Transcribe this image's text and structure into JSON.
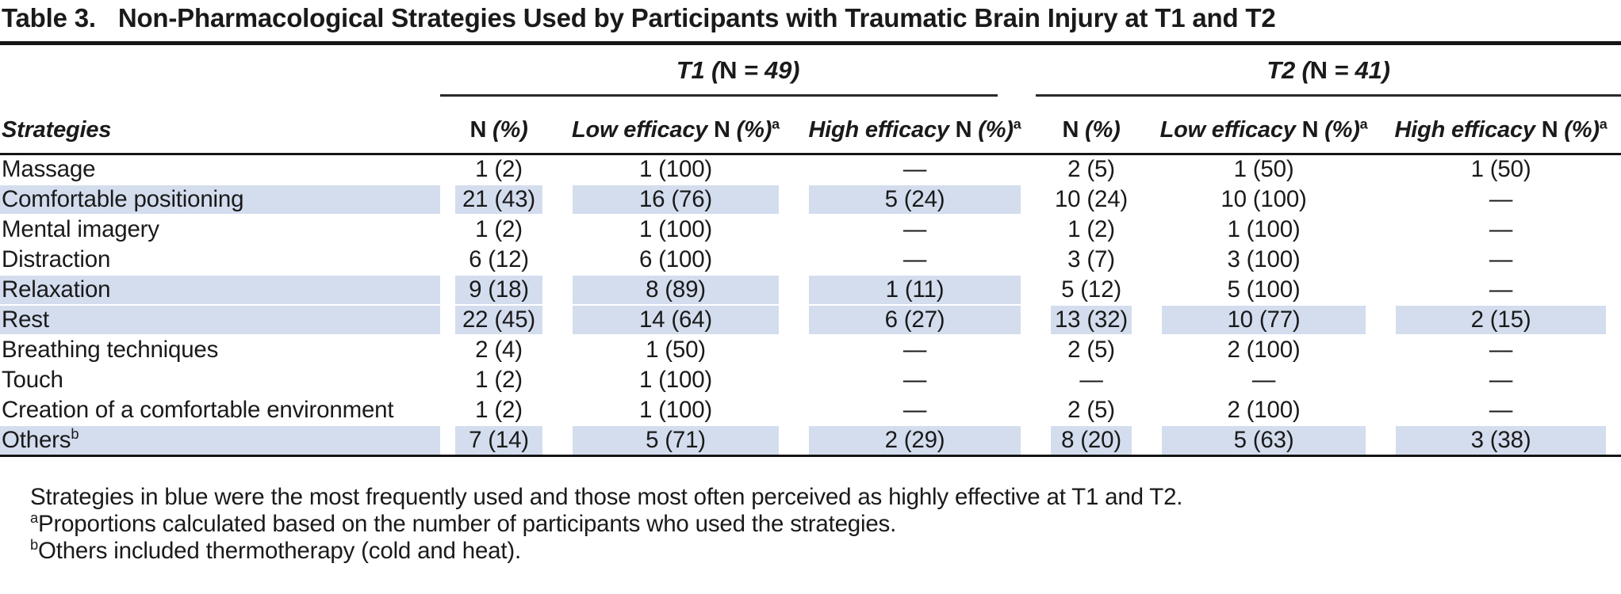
{
  "title": {
    "label": "Table 3.",
    "text": "Non-Pharmacological Strategies Used by Participants with Traumatic Brain Injury at T1 and T2"
  },
  "colors": {
    "highlight_blue": "#d3ddee",
    "rule_black": "#151515",
    "text": "#1a1a1a"
  },
  "header": {
    "strategies_label": "Strategies",
    "groups": [
      {
        "pre": "T1 (",
        "n": "N",
        "suf": " = 49)"
      },
      {
        "pre": "T2 (",
        "n": "N",
        "suf": " = 41)"
      }
    ],
    "subcols": [
      {
        "pre": "",
        "n": "N",
        "pct": " (%)",
        "sup": ""
      },
      {
        "pre": "Low efficacy ",
        "n": "N",
        "pct": " (%)",
        "sup": "a"
      },
      {
        "pre": "High efficacy ",
        "n": "N",
        "pct": " (%)",
        "sup": "a"
      },
      {
        "pre": "",
        "n": "N",
        "pct": " (%)",
        "sup": ""
      },
      {
        "pre": "Low efficacy ",
        "n": "N",
        "pct": " (%)",
        "sup": "a"
      },
      {
        "pre": "High efficacy ",
        "n": "N",
        "pct": " (%)",
        "sup": "a"
      }
    ]
  },
  "rows": [
    {
      "name": "Massage",
      "sup": "",
      "values": [
        "1 (2)",
        "1 (100)",
        "—",
        "2 (5)",
        "1 (50)",
        "1 (50)"
      ],
      "hl": [
        false,
        false,
        false,
        false,
        false,
        false,
        false
      ]
    },
    {
      "name": "Comfortable positioning",
      "sup": "",
      "values": [
        "21 (43)",
        "16 (76)",
        "5 (24)",
        "10 (24)",
        "10 (100)",
        "—"
      ],
      "hl": [
        true,
        true,
        true,
        true,
        false,
        false,
        false
      ]
    },
    {
      "name": "Mental imagery",
      "sup": "",
      "values": [
        "1 (2)",
        "1 (100)",
        "—",
        "1 (2)",
        "1 (100)",
        "—"
      ],
      "hl": [
        false,
        false,
        false,
        false,
        false,
        false,
        false
      ]
    },
    {
      "name": "Distraction",
      "sup": "",
      "values": [
        "6 (12)",
        "6 (100)",
        "—",
        "3 (7)",
        "3 (100)",
        "—"
      ],
      "hl": [
        false,
        false,
        false,
        false,
        false,
        false,
        false
      ]
    },
    {
      "name": "Relaxation",
      "sup": "",
      "values": [
        "9 (18)",
        "8 (89)",
        "1 (11)",
        "5 (12)",
        "5 (100)",
        "—"
      ],
      "hl": [
        true,
        true,
        true,
        true,
        false,
        false,
        false
      ]
    },
    {
      "name": "Rest",
      "sup": "",
      "values": [
        "22 (45)",
        "14 (64)",
        "6 (27)",
        "13 (32)",
        "10 (77)",
        "2 (15)"
      ],
      "hl": [
        true,
        true,
        true,
        true,
        true,
        true,
        true
      ]
    },
    {
      "name": "Breathing techniques",
      "sup": "",
      "values": [
        "2 (4)",
        "1 (50)",
        "—",
        "2 (5)",
        "2 (100)",
        "—"
      ],
      "hl": [
        false,
        false,
        false,
        false,
        false,
        false,
        false
      ]
    },
    {
      "name": "Touch",
      "sup": "",
      "values": [
        "1 (2)",
        "1 (100)",
        "—",
        "—",
        "—",
        "—"
      ],
      "hl": [
        false,
        false,
        false,
        false,
        false,
        false,
        false
      ]
    },
    {
      "name": "Creation of a comfortable environment",
      "sup": "",
      "values": [
        "1 (2)",
        "1 (100)",
        "—",
        "2 (5)",
        "2 (100)",
        "—"
      ],
      "hl": [
        false,
        false,
        false,
        false,
        false,
        false,
        false
      ]
    },
    {
      "name": "Others",
      "sup": "b",
      "values": [
        "7 (14)",
        "5 (71)",
        "2 (29)",
        "8 (20)",
        "5 (63)",
        "3 (38)"
      ],
      "hl": [
        true,
        true,
        true,
        true,
        true,
        true,
        true
      ]
    }
  ],
  "footnotes": [
    {
      "sup": "",
      "text": "Strategies in blue were the most frequently used and those most often perceived as highly effective at T1 and T2."
    },
    {
      "sup": "a",
      "text": "Proportions calculated based on the number of participants who used the strategies."
    },
    {
      "sup": "b",
      "text": "Others included thermotherapy (cold and heat)."
    }
  ]
}
